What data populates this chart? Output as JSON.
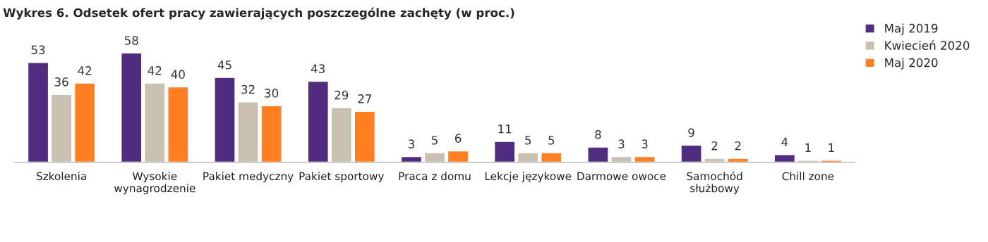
{
  "chart_data": {
    "type": "bar",
    "title": "Wykres 6. Odsetek ofert pracy zawierających poszczególne zachęty (w proc.)",
    "categories": [
      "Szkolenia",
      "Wysokie\nwynagrodzenie",
      "Pakiet medyczny",
      "Pakiet sportowy",
      "Praca z domu",
      "Lekcje językowe",
      "Darmowe owoce",
      "Samochód\nsłużbowy",
      "Chill zone"
    ],
    "series": [
      {
        "name": "Maj 2019",
        "color": "#512d7f",
        "values": [
          53,
          58,
          45,
          43,
          3,
          11,
          8,
          9,
          4
        ]
      },
      {
        "name": "Kwiecień 2020",
        "color": "#c9c0b1",
        "values": [
          36,
          42,
          32,
          29,
          5,
          5,
          3,
          2,
          1
        ]
      },
      {
        "name": "Maj 2020",
        "color": "#ff7f22",
        "values": [
          42,
          40,
          30,
          27,
          6,
          5,
          3,
          2,
          1
        ]
      }
    ],
    "data_labels": true,
    "legend": "top right",
    "grid": false
  }
}
